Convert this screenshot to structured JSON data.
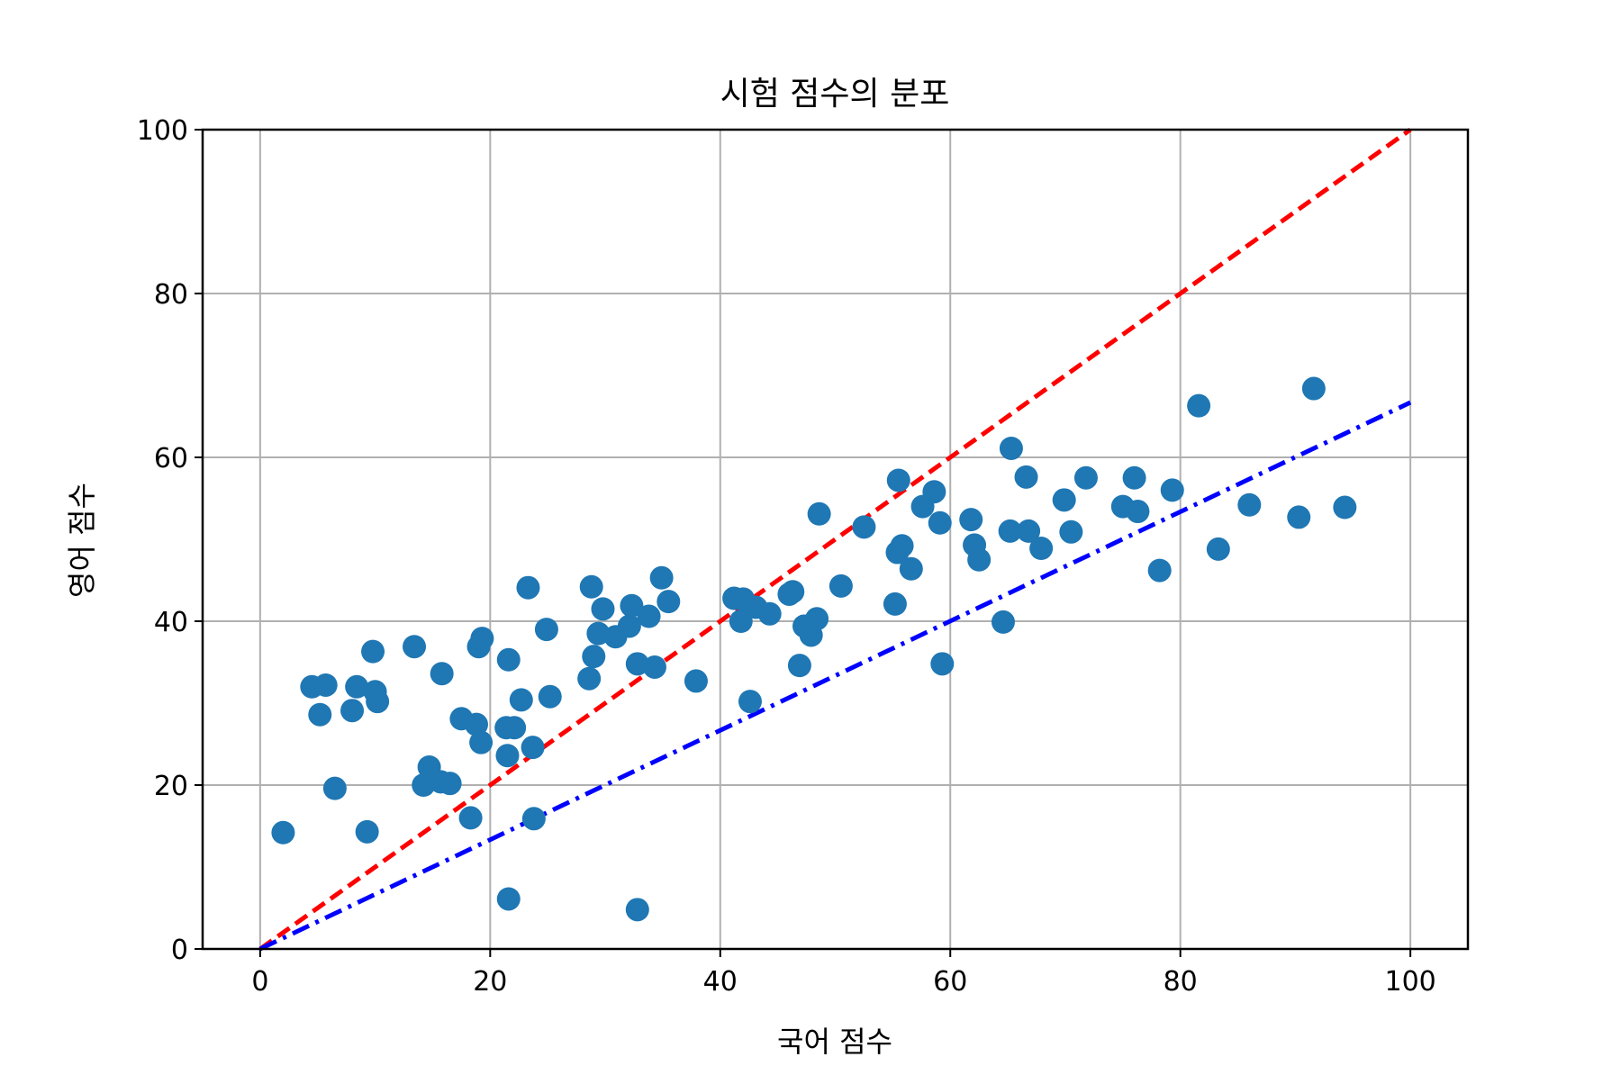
{
  "chart_data": {
    "type": "scatter",
    "title": "시험 점수의 분포",
    "xlabel": "국어 점수",
    "ylabel": "영어 점수",
    "xlim": [
      -5,
      105
    ],
    "ylim": [
      0,
      100
    ],
    "xticks": [
      0,
      20,
      40,
      60,
      80,
      100
    ],
    "yticks": [
      0,
      20,
      40,
      60,
      80,
      100
    ],
    "xtick_labels": [
      "0",
      "20",
      "40",
      "60",
      "80",
      "100"
    ],
    "ytick_labels": [
      "0",
      "20",
      "40",
      "60",
      "80",
      "100"
    ],
    "grid": true,
    "colors": {
      "points": "#1f77b4",
      "line_identity": "#ff0000",
      "line_fit": "#0000ff"
    },
    "lines": [
      {
        "x": [
          0,
          100
        ],
        "y": [
          0,
          100
        ],
        "style": "dashed",
        "color": "#ff0000"
      },
      {
        "x": [
          0,
          100
        ],
        "y": [
          0,
          66.7
        ],
        "style": "dashdot",
        "color": "#0000ff"
      }
    ],
    "points": [
      [
        2,
        14.2
      ],
      [
        4.5,
        32
      ],
      [
        5.2,
        28.6
      ],
      [
        5.7,
        32.2
      ],
      [
        6.5,
        19.6
      ],
      [
        8,
        29.1
      ],
      [
        8.4,
        32
      ],
      [
        9.3,
        14.3
      ],
      [
        10,
        31.4
      ],
      [
        9.8,
        36.3
      ],
      [
        10.2,
        30.2
      ],
      [
        13.4,
        36.9
      ],
      [
        14.2,
        20
      ],
      [
        14.7,
        22.2
      ],
      [
        15.8,
        33.6
      ],
      [
        15.7,
        20.4
      ],
      [
        16.5,
        20.2
      ],
      [
        17.5,
        28.1
      ],
      [
        18.3,
        16
      ],
      [
        18.8,
        27.4
      ],
      [
        19,
        36.9
      ],
      [
        19.3,
        37.9
      ],
      [
        19.2,
        25.2
      ],
      [
        21.4,
        27
      ],
      [
        21.5,
        23.6
      ],
      [
        21.6,
        35.3
      ],
      [
        22.1,
        27
      ],
      [
        21.6,
        6.1
      ],
      [
        22.7,
        30.4
      ],
      [
        23.3,
        44.1
      ],
      [
        23.7,
        24.6
      ],
      [
        23.8,
        15.9
      ],
      [
        24.9,
        39
      ],
      [
        25.2,
        30.8
      ],
      [
        28.6,
        33
      ],
      [
        28.8,
        44.2
      ],
      [
        29,
        35.7
      ],
      [
        29.4,
        38.5
      ],
      [
        29.8,
        41.5
      ],
      [
        30.9,
        38.1
      ],
      [
        32.1,
        39.4
      ],
      [
        32.3,
        41.9
      ],
      [
        32.8,
        34.8
      ],
      [
        32.8,
        4.8
      ],
      [
        33.8,
        40.6
      ],
      [
        34.3,
        34.4
      ],
      [
        34.9,
        45.3
      ],
      [
        35.5,
        42.4
      ],
      [
        37.9,
        32.7
      ],
      [
        41.2,
        42.8
      ],
      [
        41.8,
        40
      ],
      [
        42,
        42.7
      ],
      [
        42.6,
        30.2
      ],
      [
        43.1,
        41.7
      ],
      [
        44.3,
        40.9
      ],
      [
        46,
        43.3
      ],
      [
        46.3,
        43.6
      ],
      [
        46.9,
        34.6
      ],
      [
        47.3,
        39.4
      ],
      [
        47.9,
        38.3
      ],
      [
        48.4,
        40.3
      ],
      [
        48.6,
        53.1
      ],
      [
        50.5,
        44.3
      ],
      [
        52.5,
        51.5
      ],
      [
        55.2,
        42.1
      ],
      [
        55.4,
        48.4
      ],
      [
        55.5,
        57.2
      ],
      [
        55.8,
        49.2
      ],
      [
        56.6,
        46.4
      ],
      [
        57.6,
        54
      ],
      [
        58.6,
        55.8
      ],
      [
        59.1,
        52
      ],
      [
        59.3,
        34.8
      ],
      [
        61.8,
        52.4
      ],
      [
        62.1,
        49.3
      ],
      [
        62.5,
        47.5
      ],
      [
        64.6,
        39.9
      ],
      [
        65.2,
        51
      ],
      [
        65.3,
        61.1
      ],
      [
        66.6,
        57.6
      ],
      [
        66.8,
        51
      ],
      [
        67.9,
        48.9
      ],
      [
        69.9,
        54.8
      ],
      [
        70.5,
        50.9
      ],
      [
        71.8,
        57.5
      ],
      [
        75,
        54
      ],
      [
        76,
        57.5
      ],
      [
        76.3,
        53.4
      ],
      [
        78.2,
        46.2
      ],
      [
        79.3,
        56
      ],
      [
        81.6,
        66.3
      ],
      [
        83.3,
        48.8
      ],
      [
        86,
        54.2
      ],
      [
        90.3,
        52.7
      ],
      [
        91.6,
        68.4
      ],
      [
        94.3,
        53.9
      ]
    ]
  }
}
